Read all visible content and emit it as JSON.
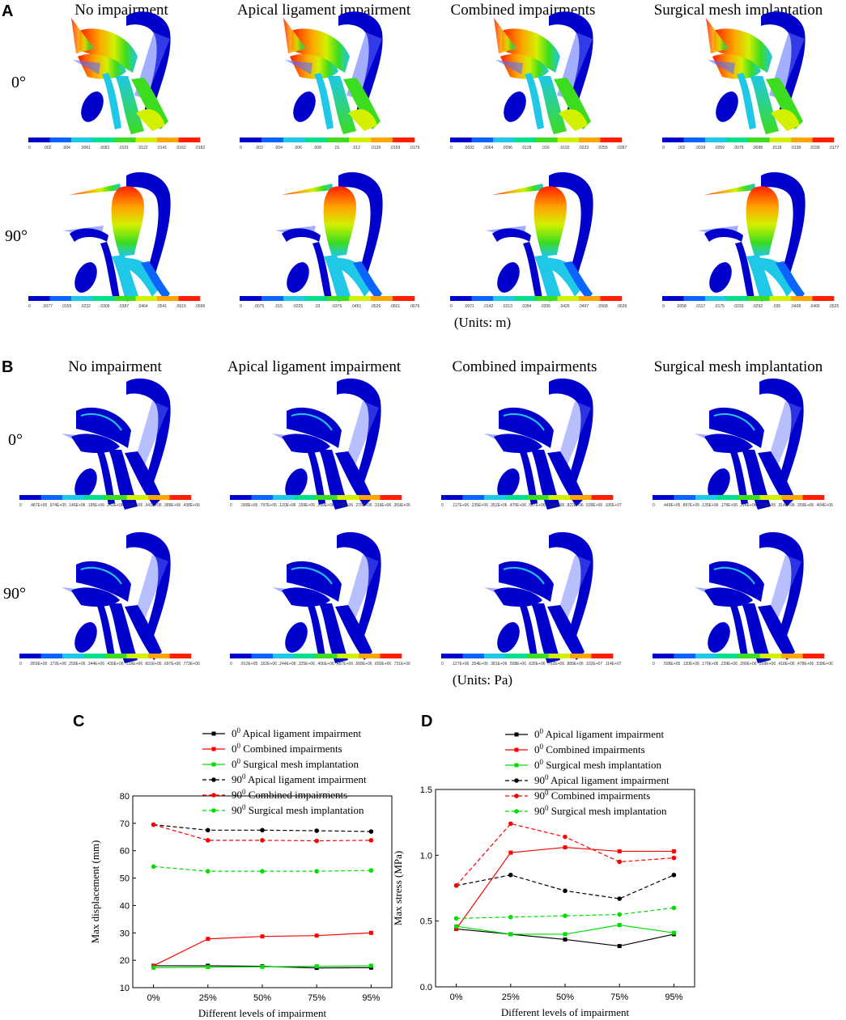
{
  "panel_labels": [
    "A",
    "B",
    "C",
    "D"
  ],
  "column_titles": [
    "No impairment",
    "Apical ligament impairment",
    "Combined impairments",
    "Surgical mesh implantation"
  ],
  "row_labels": [
    "0°",
    "90°"
  ],
  "units_a": "(Units: m)",
  "units_b": "(Units: Pa)",
  "colorbar_colors": [
    "#0000cc",
    "#0a64ff",
    "#1ec8e6",
    "#00e08c",
    "#3cdc1e",
    "#d2f000",
    "#ffa500",
    "#ff1e00"
  ],
  "colorbars_a": [
    [
      [
        "0",
        ".002",
        ".004",
        ".0061",
        ".0081",
        ".0101",
        ".0122",
        ".0141",
        ".0162",
        ".0182"
      ],
      [
        "0",
        ".002",
        ".004",
        ".006",
        ".008",
        ".01",
        ".012",
        ".0139",
        ".0159",
        ".0179"
      ],
      [
        "0",
        ".0032",
        ".0064",
        ".0096",
        ".0128",
        ".016",
        ".0192",
        ".0223",
        ".0255",
        ".0287"
      ],
      [
        "0",
        ".002",
        ".0039",
        ".0059",
        ".0079",
        ".0098",
        ".0118",
        ".0138",
        ".0158",
        ".0177"
      ]
    ],
    [
      [
        "0",
        ".0077",
        ".0155",
        ".0232",
        ".0309",
        ".0387",
        ".0464",
        ".0541",
        ".0619",
        ".0696"
      ],
      [
        "0",
        ".0075",
        ".015",
        ".0225",
        ".03",
        ".0376",
        ".0451",
        ".0526",
        ".0601",
        ".0676"
      ],
      [
        "0",
        ".0071",
        ".0142",
        ".0213",
        ".0284",
        ".0355",
        ".0426",
        ".0497",
        ".0568",
        ".0639"
      ],
      [
        "0",
        ".0058",
        ".0117",
        ".0175",
        ".0233",
        ".0292",
        ".035",
        ".0408",
        ".0466",
        ".0525"
      ]
    ]
  ],
  "colorbars_b": [
    [
      [
        "0",
        ".487E+05",
        ".974E+05",
        ".146E+06",
        ".195E+06",
        ".243E+06",
        ".292E+06",
        ".341E+06",
        ".389E+06",
        ".438E+06"
      ],
      [
        "0",
        ".399E+05",
        ".797E+05",
        ".120E+06",
        ".159E+06",
        ".199E+06",
        ".239E+06",
        ".279E+06",
        ".319E+06",
        ".359E+06"
      ],
      [
        "0",
        ".117E+06",
        ".235E+06",
        ".352E+06",
        ".470E+06",
        ".587E+06",
        ".704E+06",
        ".822E+06",
        ".939E+06",
        ".106E+07"
      ],
      [
        "0",
        ".449E+05",
        ".897E+05",
        ".135E+06",
        ".179E+06",
        ".224E+06",
        ".269E+06",
        ".314E+06",
        ".359E+06",
        ".404E+06"
      ]
    ],
    [
      [
        "0",
        ".859E+05",
        ".172E+06",
        ".258E+06",
        ".344E+06",
        ".430E+06",
        ".516E+06",
        ".601E+06",
        ".687E+06",
        ".773E+06"
      ],
      [
        "0",
        ".812E+05",
        ".162E+06",
        ".244E+06",
        ".325E+06",
        ".406E+06",
        ".487E+06",
        ".568E+06",
        ".650E+06",
        ".731E+06"
      ],
      [
        "0",
        ".127E+06",
        ".254E+06",
        ".381E+06",
        ".508E+06",
        ".635E+06",
        ".762E+06",
        ".889E+06",
        ".102E+07",
        ".114E+07"
      ],
      [
        "0",
        ".598E+05",
        ".120E+06",
        ".179E+06",
        ".239E+06",
        ".299E+06",
        ".359E+06",
        ".418E+06",
        ".478E+06",
        ".538E+06"
      ]
    ]
  ],
  "chart_data": [
    {
      "type": "line",
      "panel": "C",
      "categories": [
        "0%",
        "25%",
        "50%",
        "75%",
        "95%"
      ],
      "xlabel": "Different levels of impairment",
      "ylabel": "Max displacement (mm)",
      "ylim": [
        10,
        80
      ],
      "yticks": [
        "10",
        "20",
        "30",
        "40",
        "50",
        "60",
        "70",
        "80"
      ],
      "legend_position": "top-right",
      "series": [
        {
          "deg": "0",
          "sup": "0",
          "label": " Apical ligament impairment",
          "color": "#000000",
          "dashed": false,
          "marker": "square",
          "values": [
            18.0,
            18.0,
            17.8,
            17.2,
            17.3
          ]
        },
        {
          "deg": "0",
          "sup": "0",
          "label": " Combined impairments",
          "color": "#ff0000",
          "dashed": false,
          "marker": "square",
          "values": [
            18.0,
            27.8,
            28.7,
            29.0,
            30.0
          ]
        },
        {
          "deg": "0",
          "sup": "0",
          "label": " Surgical mesh implantation",
          "color": "#00dd00",
          "dashed": false,
          "marker": "square",
          "values": [
            17.3,
            17.5,
            17.6,
            17.8,
            18.0
          ]
        },
        {
          "deg": "90",
          "sup": "0",
          "label": " Apical ligament impairment",
          "color": "#000000",
          "dashed": true,
          "marker": "circle",
          "values": [
            69.5,
            67.5,
            67.5,
            67.3,
            67.0
          ]
        },
        {
          "deg": "90",
          "sup": "0",
          "label": " Combined impairments",
          "color": "#ff0000",
          "dashed": true,
          "marker": "circle",
          "values": [
            69.5,
            63.8,
            63.8,
            63.6,
            63.8
          ]
        },
        {
          "deg": "90",
          "sup": "0",
          "label": " Surgical mesh implantation",
          "color": "#00dd00",
          "dashed": true,
          "marker": "circle",
          "values": [
            54.2,
            52.5,
            52.5,
            52.5,
            52.8
          ]
        }
      ]
    },
    {
      "type": "line",
      "panel": "D",
      "categories": [
        "0%",
        "25%",
        "50%",
        "75%",
        "95%"
      ],
      "xlabel": "Different levels of impairment",
      "ylabel": "Max stress (MPa)",
      "ylim": [
        0.0,
        1.5
      ],
      "yticks": [
        "0.0",
        "0.5",
        "1.0",
        "1.5"
      ],
      "legend_position": "top-right",
      "series": [
        {
          "deg": "0",
          "sup": "0",
          "label": " Apical ligament impairment",
          "color": "#000000",
          "dashed": false,
          "marker": "square",
          "values": [
            0.44,
            0.4,
            0.36,
            0.31,
            0.4
          ]
        },
        {
          "deg": "0",
          "sup": "0",
          "label": " Combined impairments",
          "color": "#ff0000",
          "dashed": false,
          "marker": "square",
          "values": [
            0.44,
            1.02,
            1.06,
            1.03,
            1.03
          ]
        },
        {
          "deg": "0",
          "sup": "0",
          "label": " Surgical mesh implantation",
          "color": "#00dd00",
          "dashed": false,
          "marker": "square",
          "values": [
            0.46,
            0.4,
            0.4,
            0.47,
            0.41
          ]
        },
        {
          "deg": "90",
          "sup": "0",
          "label": " Apical ligament impairment",
          "color": "#000000",
          "dashed": true,
          "marker": "circle",
          "values": [
            0.77,
            0.85,
            0.73,
            0.67,
            0.85
          ]
        },
        {
          "deg": "90",
          "sup": "0",
          "label": " Combined impairments",
          "color": "#ff0000",
          "dashed": true,
          "marker": "circle",
          "values": [
            0.77,
            1.24,
            1.14,
            0.95,
            0.98
          ]
        },
        {
          "deg": "90",
          "sup": "0",
          "label": " Surgical mesh implantation",
          "color": "#00dd00",
          "dashed": true,
          "marker": "circle",
          "values": [
            0.52,
            0.53,
            0.54,
            0.55,
            0.6
          ]
        }
      ]
    }
  ]
}
